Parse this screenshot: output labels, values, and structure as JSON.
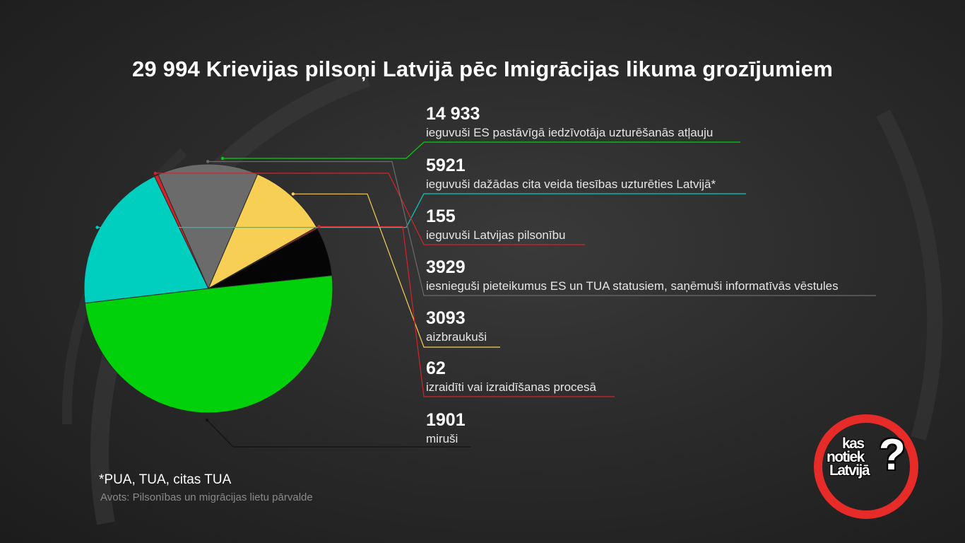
{
  "title": "29 994 Krievijas pilsoņi Latvijā pēc Imigrācijas likuma grozījumiem",
  "chart_data": {
    "type": "pie",
    "title": "29 994 Krievijas pilsoņi Latvijā pēc Imigrācijas likuma grozījumiem",
    "total": 29994,
    "slices": [
      {
        "value_label": "14 933",
        "value": 14933,
        "label": "ieguvuši ES pastāvīgā iedzīvotāja uzturēšanās atļauju",
        "color": "#00d10a"
      },
      {
        "value_label": "5921",
        "value": 5921,
        "label": "ieguvuši dažādas cita veida tiesības uzturēties Latvijā*",
        "color": "#00cfc0"
      },
      {
        "value_label": "155",
        "value": 155,
        "label": "ieguvuši Latvijas pilsonību",
        "color": "#d6232a"
      },
      {
        "value_label": "3929",
        "value": 3929,
        "label": "iesnieguši pieteikumus ES un TUA statusiem, saņēmuši informatīvās vēstules",
        "color": "#6b6b6b"
      },
      {
        "value_label": "3093",
        "value": 3093,
        "label": "aizbraukuši",
        "color": "#f7cf55"
      },
      {
        "value_label": "62",
        "value": 62,
        "label": "izraidīti vai izraidīšanas procesā",
        "color": "#d6232a"
      },
      {
        "value_label": "1901",
        "value": 1901,
        "label": "miruši",
        "color": "#050505"
      }
    ]
  },
  "footnote": "*PUA, TUA, citas TUA",
  "source": "Avots: Pilsonības un migrācijas lietu pārvalde",
  "logo": {
    "line1": "kas",
    "line2": "notiek",
    "line3": "Latvijā",
    "mark": "?"
  }
}
